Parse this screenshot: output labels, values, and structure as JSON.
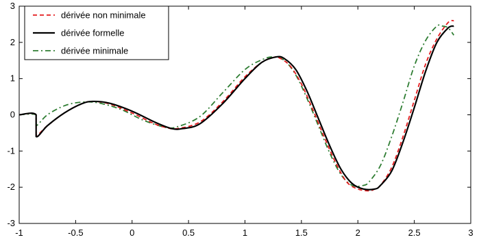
{
  "chart_data": {
    "type": "line",
    "title": "",
    "xlabel": "",
    "ylabel": "",
    "xlim": [
      -1,
      3
    ],
    "ylim": [
      -3,
      3
    ],
    "x_ticks": [
      -1,
      -0.5,
      0,
      0.5,
      1,
      1.5,
      2,
      2.5,
      3
    ],
    "x_tick_labels": [
      "-1",
      "-0.5",
      "0",
      "0.5",
      "1",
      "1.5",
      "2",
      "2.5",
      "3"
    ],
    "y_ticks": [
      -3,
      -2,
      -1,
      0,
      1,
      2,
      3
    ],
    "y_tick_labels": [
      "-3",
      "-2",
      "-1",
      "0",
      "1",
      "2",
      "3"
    ],
    "grid": false,
    "legend_position": "top-left",
    "series": [
      {
        "name": "dérivée non minimale",
        "color": "#e41a1c",
        "dash": "dashed",
        "x": [
          -1.0,
          -0.85,
          -0.85,
          -0.75,
          -0.6,
          -0.45,
          -0.35,
          -0.2,
          0.0,
          0.2,
          0.3,
          0.4,
          0.6,
          0.8,
          1.0,
          1.15,
          1.25,
          1.3,
          1.4,
          1.5,
          1.6,
          1.7,
          1.8,
          1.9,
          2.0,
          2.1,
          2.15,
          2.2,
          2.3,
          2.4,
          2.5,
          2.6,
          2.7,
          2.8,
          2.85
        ],
        "y": [
          0.0,
          0.0,
          -0.55,
          -0.3,
          0.05,
          0.3,
          0.37,
          0.3,
          0.05,
          -0.25,
          -0.35,
          -0.38,
          -0.2,
          0.35,
          1.05,
          1.45,
          1.58,
          1.58,
          1.35,
          0.85,
          0.15,
          -0.6,
          -1.3,
          -1.85,
          -2.05,
          -2.1,
          -2.05,
          -1.95,
          -1.45,
          -0.6,
          0.4,
          1.4,
          2.1,
          2.55,
          2.6
        ]
      },
      {
        "name": "dérivée formelle",
        "color": "#000000",
        "dash": "solid",
        "x": [
          -1.0,
          -0.85,
          -0.85,
          -0.75,
          -0.6,
          -0.45,
          -0.35,
          -0.2,
          0.0,
          0.2,
          0.35,
          0.45,
          0.6,
          0.8,
          1.0,
          1.15,
          1.28,
          1.35,
          1.45,
          1.55,
          1.65,
          1.75,
          1.85,
          1.95,
          2.05,
          2.15,
          2.2,
          2.3,
          2.4,
          2.5,
          2.6,
          2.7,
          2.8,
          2.85
        ],
        "y": [
          0.0,
          0.0,
          -0.6,
          -0.3,
          0.05,
          0.3,
          0.37,
          0.32,
          0.1,
          -0.2,
          -0.38,
          -0.38,
          -0.25,
          0.3,
          1.0,
          1.45,
          1.6,
          1.55,
          1.25,
          0.65,
          -0.1,
          -0.85,
          -1.5,
          -1.9,
          -2.05,
          -2.05,
          -1.95,
          -1.55,
          -0.75,
          0.2,
          1.2,
          2.0,
          2.4,
          2.45
        ]
      },
      {
        "name": "dérivée minimale",
        "color": "#2e7d32",
        "dash": "dashdot",
        "x": [
          -1.0,
          -0.85,
          -0.85,
          -0.75,
          -0.6,
          -0.45,
          -0.3,
          -0.1,
          0.1,
          0.3,
          0.4,
          0.6,
          0.8,
          1.0,
          1.15,
          1.25,
          1.35,
          1.45,
          1.55,
          1.65,
          1.75,
          1.85,
          1.95,
          2.05,
          2.1,
          2.2,
          2.3,
          2.4,
          2.5,
          2.6,
          2.7,
          2.75,
          2.8,
          2.85
        ],
        "y": [
          0.0,
          0.0,
          -0.3,
          0.0,
          0.25,
          0.35,
          0.33,
          0.15,
          -0.15,
          -0.35,
          -0.33,
          -0.05,
          0.6,
          1.25,
          1.52,
          1.6,
          1.5,
          1.1,
          0.45,
          -0.3,
          -1.05,
          -1.65,
          -1.95,
          -1.95,
          -1.85,
          -1.4,
          -0.6,
          0.35,
          1.35,
          2.05,
          2.45,
          2.45,
          2.4,
          2.2
        ]
      }
    ]
  }
}
